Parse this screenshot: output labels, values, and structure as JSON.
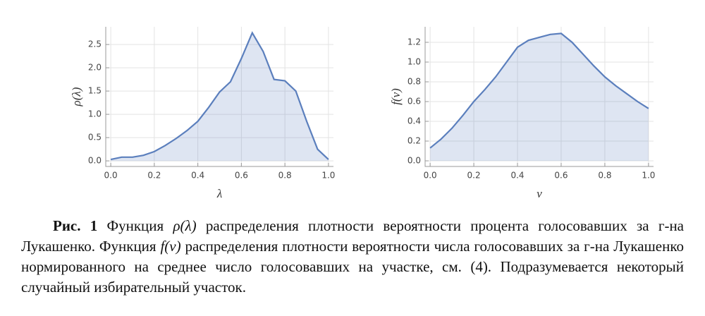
{
  "chart_data": [
    {
      "type": "area",
      "ylabel": "ρ(λ)",
      "xlabel": "λ",
      "x": [
        0,
        0.05,
        0.1,
        0.15,
        0.2,
        0.25,
        0.3,
        0.35,
        0.4,
        0.45,
        0.5,
        0.55,
        0.6,
        0.65,
        0.7,
        0.75,
        0.8,
        0.85,
        0.9,
        0.95,
        1.0
      ],
      "series": [
        {
          "color": "#5b7fbd",
          "values": [
            0.03,
            0.08,
            0.08,
            0.12,
            0.2,
            0.33,
            0.48,
            0.65,
            0.85,
            1.15,
            1.48,
            1.7,
            2.2,
            2.75,
            2.35,
            1.75,
            1.72,
            1.5,
            0.85,
            0.25,
            0.03
          ]
        }
      ],
      "xlim": [
        -0.023,
        1.023
      ],
      "ylim": [
        -0.12,
        2.88
      ],
      "xticks": [
        {
          "value": 0,
          "label": "0.0"
        },
        0.2,
        0.4,
        0.6,
        0.8,
        {
          "value": 1,
          "label": "1.0"
        }
      ],
      "yticks": [
        {
          "value": 0,
          "label": "0.0"
        },
        0.5,
        {
          "value": 1,
          "label": "1.0"
        },
        1.5,
        {
          "value": 2,
          "label": "2.0"
        },
        2.5
      ],
      "grid": true
    },
    {
      "type": "area",
      "ylabel": "f(ν)",
      "xlabel": "ν",
      "x": [
        0,
        0.05,
        0.1,
        0.15,
        0.2,
        0.25,
        0.3,
        0.35,
        0.4,
        0.45,
        0.5,
        0.55,
        0.6,
        0.65,
        0.7,
        0.75,
        0.8,
        0.85,
        0.9,
        0.95,
        1.0
      ],
      "series": [
        {
          "color": "#5b7fbd",
          "values": [
            0.13,
            0.22,
            0.33,
            0.46,
            0.6,
            0.72,
            0.85,
            1.0,
            1.15,
            1.22,
            1.25,
            1.28,
            1.29,
            1.2,
            1.08,
            0.96,
            0.85,
            0.76,
            0.68,
            0.6,
            0.53
          ]
        }
      ],
      "xlim": [
        -0.023,
        1.023
      ],
      "ylim": [
        -0.057,
        1.357
      ],
      "xticks": [
        {
          "value": 0,
          "label": "0.0"
        },
        0.2,
        0.4,
        0.6,
        0.8,
        {
          "value": 1,
          "label": "1.0"
        }
      ],
      "yticks": [
        {
          "value": 0,
          "label": "0.0"
        },
        0.2,
        0.4,
        0.6,
        0.8,
        {
          "value": 1,
          "label": "1.0"
        },
        1.2
      ],
      "grid": true
    }
  ],
  "caption": {
    "label": "Рис. 1",
    "parts": [
      " Функция ",
      "ρ(λ)",
      " распределения плотности вероятности процента голосовавших за г-на Лукашенко. Функция ",
      "f(ν)",
      " распределения плотности вероятности числа голосовавших за г-на Лукашенко нормированного на среднее число голосовавших на участке, см. (4). Подразумевается некоторый случайный избирательный участок."
    ]
  }
}
